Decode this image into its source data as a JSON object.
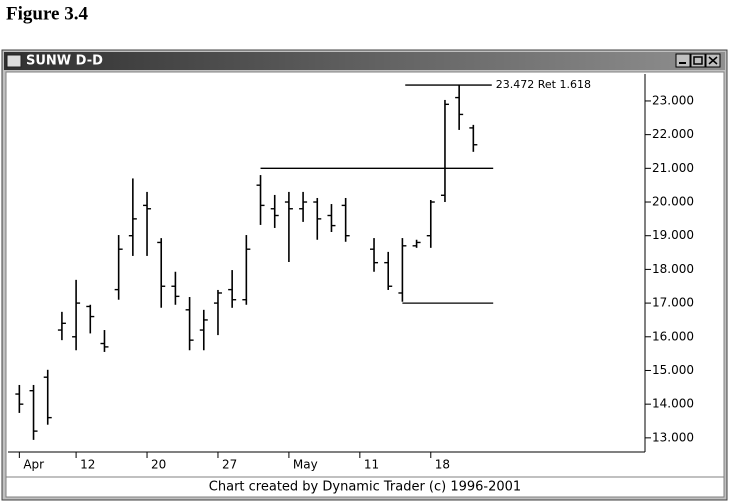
{
  "figure_label": "Figure 3.4",
  "chart_data": {
    "type": "ohlc",
    "title": "SUNW D-D",
    "footer": "Chart created by Dynamic Trader (c) 1996-2001",
    "color": "#000000",
    "x": [
      0,
      1,
      2,
      3,
      4,
      5,
      6,
      7,
      8,
      9,
      10,
      11,
      12,
      13,
      14,
      15,
      16,
      17,
      18,
      19,
      20,
      21,
      22,
      23,
      25,
      26,
      27,
      28,
      29,
      30,
      31,
      32
    ],
    "open": [
      14.3,
      14.4,
      14.8,
      16.2,
      16.0,
      16.9,
      15.8,
      17.4,
      19.0,
      19.9,
      18.8,
      17.5,
      16.8,
      16.2,
      17.0,
      17.4,
      17.1,
      20.5,
      19.8,
      20.0,
      19.8,
      20.0,
      19.6,
      19.9,
      18.6,
      18.2,
      17.3,
      18.7,
      19.0,
      20.2,
      23.1,
      22.2
    ],
    "high": [
      14.57,
      14.57,
      15.02,
      16.74,
      17.69,
      16.95,
      16.2,
      19.02,
      20.7,
      20.3,
      18.93,
      17.93,
      17.18,
      16.8,
      17.39,
      17.98,
      19.02,
      20.8,
      20.21,
      20.3,
      20.3,
      20.12,
      19.94,
      20.12,
      18.93,
      18.52,
      18.93,
      18.88,
      20.06,
      23.03,
      23.47,
      22.29
    ],
    "low": [
      13.74,
      12.94,
      13.39,
      15.9,
      15.6,
      16.1,
      15.55,
      17.1,
      18.4,
      18.4,
      16.86,
      16.95,
      15.6,
      15.6,
      16.05,
      16.86,
      16.95,
      19.32,
      19.23,
      18.22,
      19.41,
      18.88,
      19.11,
      18.82,
      17.93,
      17.39,
      17.04,
      18.64,
      18.64,
      20.0,
      22.14,
      21.49
    ],
    "close": [
      14.0,
      13.2,
      13.6,
      16.4,
      17.0,
      16.6,
      15.7,
      18.6,
      19.5,
      19.8,
      17.5,
      17.2,
      15.9,
      16.5,
      17.3,
      17.1,
      18.6,
      19.9,
      19.6,
      19.8,
      20.0,
      19.5,
      19.3,
      19.0,
      18.2,
      17.5,
      18.7,
      18.8,
      20.0,
      22.9,
      22.6,
      21.7
    ],
    "xlim": [
      -0.8,
      44.1
    ],
    "xticks": [
      {
        "value": 0,
        "label": "Apr"
      },
      {
        "value": 4,
        "label": "12"
      },
      {
        "value": 9,
        "label": "20"
      },
      {
        "value": 14,
        "label": "27"
      },
      {
        "value": 19,
        "label": "May"
      },
      {
        "value": 24,
        "label": "11"
      },
      {
        "value": 29,
        "label": "18"
      }
    ],
    "ylim": [
      12.58,
      23.8
    ],
    "yticks": [
      {
        "value": 13,
        "label": "13.000"
      },
      {
        "value": 14,
        "label": "14.000"
      },
      {
        "value": 15,
        "label": "15.000"
      },
      {
        "value": 16,
        "label": "16.000"
      },
      {
        "value": 17,
        "label": "17.000"
      },
      {
        "value": 18,
        "label": "18.000"
      },
      {
        "value": 19,
        "label": "19.000"
      },
      {
        "value": 20,
        "label": "20.000"
      },
      {
        "value": 21,
        "label": "21.000"
      },
      {
        "value": 22,
        "label": "22.000"
      },
      {
        "value": 23,
        "label": "23.000"
      }
    ],
    "levels": [
      {
        "value": 23.472,
        "label": "23.472 Ret 1.618",
        "from": 27.2,
        "to": 33.3
      },
      {
        "value": 21,
        "from": 17,
        "to": 33.4
      },
      {
        "value": 17,
        "from": 27,
        "to": 33.4
      }
    ]
  }
}
